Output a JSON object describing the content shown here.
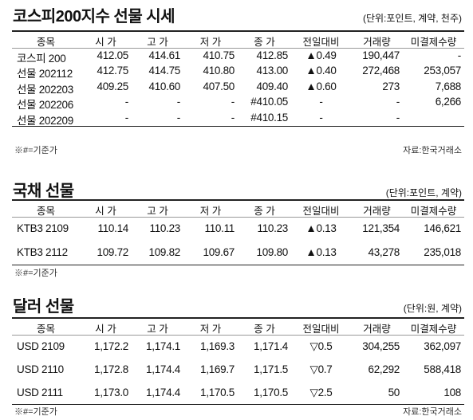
{
  "sections": [
    {
      "title": "코스피200지수 선물 시세",
      "unit": "(단위:포인트, 계약, 천주)",
      "columns": [
        "종목",
        "시 가",
        "고 가",
        "저 가",
        "종 가",
        "전일대비",
        "거래량",
        "미결제수량"
      ],
      "rows": [
        [
          "코스피 200",
          "412.05",
          "414.61",
          "410.75",
          "412.85",
          "▲0.49",
          "190,447",
          "-"
        ],
        [
          "선물 202112",
          "412.75",
          "414.75",
          "410.80",
          "413.00",
          "▲0.40",
          "272,468",
          "253,057"
        ],
        [
          "선물 202203",
          "409.25",
          "410.60",
          "407.50",
          "409.40",
          "▲0.60",
          "273",
          "7,688"
        ],
        [
          "선물 202206",
          "-",
          "-",
          "-",
          "#410.05",
          "-",
          "-",
          "6,266"
        ],
        [
          "선물 202209",
          "-",
          "-",
          "-",
          "#410.15",
          "-",
          "-",
          null
        ]
      ],
      "note": "※#=기준가",
      "source": "자료:한국거래소"
    },
    {
      "title": "국채 선물",
      "unit": "(단위:포인트, 계약)",
      "columns": [
        "종목",
        "시 가",
        "고 가",
        "저 가",
        "종 가",
        "전일대비",
        "거래량",
        "미결제수량"
      ],
      "rows": [
        [
          "KTB3 2109",
          "110.14",
          "110.23",
          "110.11",
          "110.23",
          "▲0.13",
          "121,354",
          "146,621"
        ],
        [
          "KTB3 2112",
          "109.72",
          "109.82",
          "109.67",
          "109.80",
          "▲0.13",
          "43,278",
          "235,018"
        ]
      ],
      "note": "※#=기준가"
    },
    {
      "title": "달러 선물",
      "unit": "(단위:원, 계약)",
      "columns": [
        "종목",
        "시 가",
        "고 가",
        "저 가",
        "종 가",
        "전일대비",
        "거래량",
        "미결제수량"
      ],
      "rows": [
        [
          "USD 2109",
          "1,172.2",
          "1,174.1",
          "1,169.3",
          "1,171.4",
          "▽0.5",
          "304,255",
          "362,097"
        ],
        [
          "USD 2110",
          "1,172.8",
          "1,174.4",
          "1,169.7",
          "1,171.5",
          "▽0.7",
          "62,292",
          "588,418"
        ],
        [
          "USD 2111",
          "1,173.0",
          "1,174.4",
          "1,170.5",
          "1,170.5",
          "▽2.5",
          "50",
          "108"
        ]
      ],
      "note": "※#=기준가",
      "source": "자료:한국거래소"
    }
  ]
}
